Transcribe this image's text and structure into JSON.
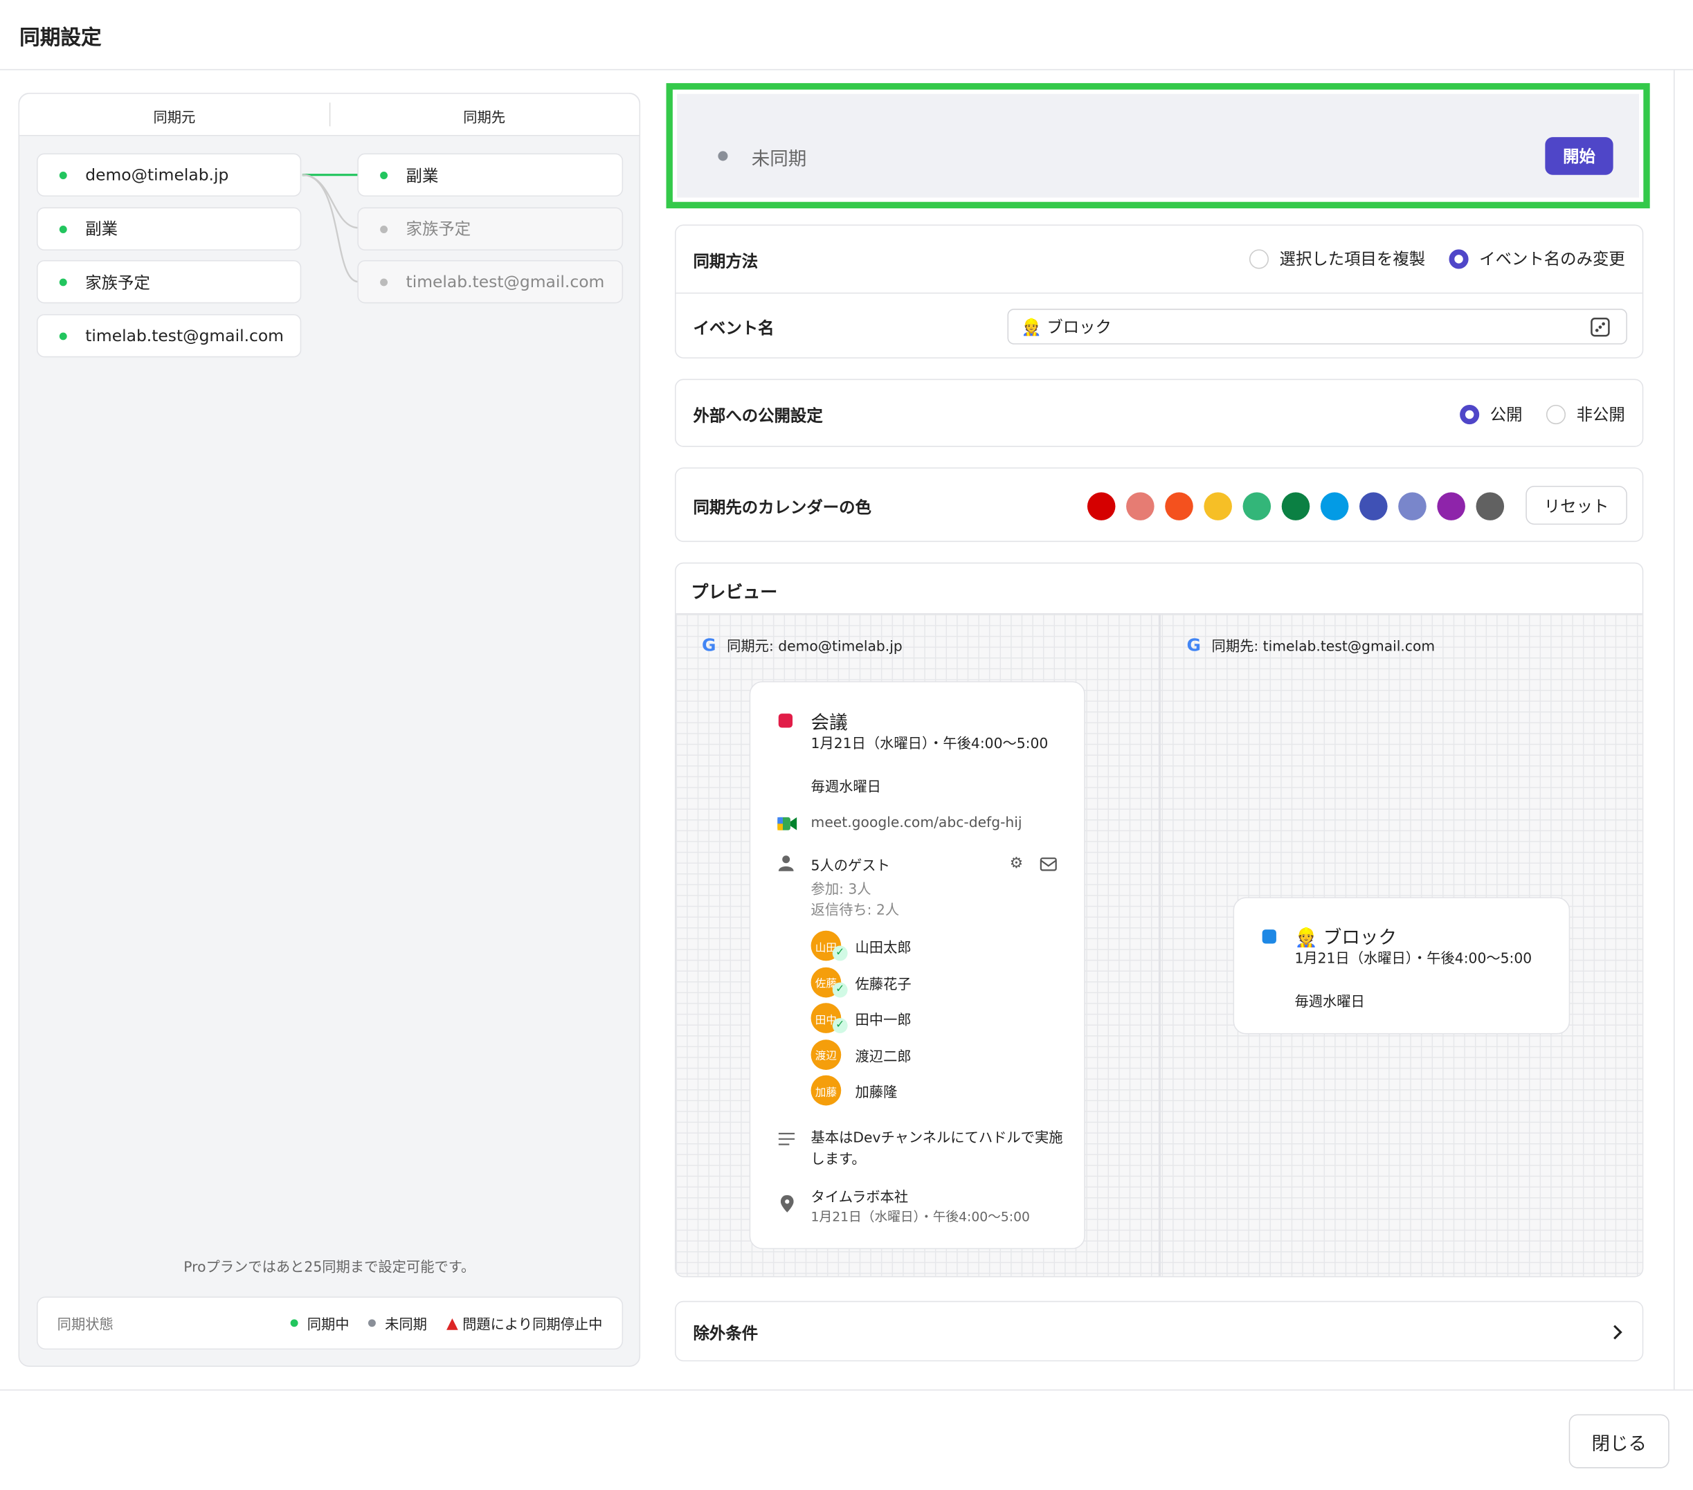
{
  "header": {
    "title": "同期設定"
  },
  "sync_panel": {
    "columns": [
      "同期元",
      "同期先"
    ],
    "sources": [
      "demo@timelab.jp",
      "副業",
      "家族予定",
      "timelab.test@gmail.com"
    ],
    "targets": [
      {
        "name": "副業",
        "synced": true
      },
      {
        "name": "家族予定",
        "synced": false
      },
      {
        "name": "timelab.test@gmail.com",
        "synced": false
      }
    ],
    "note": "Proプランではあと25同期まで設定可能です。",
    "legend": {
      "label": "同期状態",
      "items": [
        "同期中",
        "未同期",
        "問題により同期停止中"
      ]
    }
  },
  "status": {
    "text": "未同期",
    "button": "開始"
  },
  "sync_method": {
    "label": "同期方法",
    "options": [
      {
        "text": "選択した項目を複製",
        "selected": false
      },
      {
        "text": "イベント名のみ変更",
        "selected": true
      }
    ]
  },
  "event_name": {
    "label": "イベント名",
    "value": "👷 ブロック"
  },
  "visibility": {
    "label": "外部への公開設定",
    "options": [
      {
        "text": "公開",
        "selected": true
      },
      {
        "text": "非公開",
        "selected": false
      }
    ]
  },
  "calendar_color": {
    "label": "同期先のカレンダーの色",
    "colors": [
      "#d50000",
      "#e67c73",
      "#f4511e",
      "#f6bf26",
      "#33b679",
      "#0b8043",
      "#039be5",
      "#3f51b5",
      "#7986cb",
      "#8e24aa",
      "#616161"
    ],
    "reset": "リセット"
  },
  "preview": {
    "title": "プレビュー",
    "source_label": "同期元: demo@timelab.jp",
    "target_label": "同期先: timelab.test@gmail.com",
    "source_event": {
      "title": "会議",
      "time": "1月21日（水曜日）・午後4:00〜5:00",
      "recurrence": "毎週水曜日",
      "meet": "meet.google.com/abc-defg-hij",
      "guests": "5人のゲスト",
      "attending": "参加: 3人",
      "pending": "返信待ち: 2人",
      "guest_list": [
        {
          "initials": "山田",
          "name": "山田太郎",
          "accepted": true
        },
        {
          "initials": "佐藤",
          "name": "佐藤花子",
          "accepted": true
        },
        {
          "initials": "田中",
          "name": "田中一郎",
          "accepted": true
        },
        {
          "initials": "渡辺",
          "name": "渡辺二郎",
          "accepted": false
        },
        {
          "initials": "加藤",
          "name": "加藤隆",
          "accepted": false
        }
      ],
      "description": "基本はDevチャンネルにてハドルで実施します。",
      "location": "タイムラボ本社",
      "location_time": "1月21日（水曜日）・午後4:00〜5:00"
    },
    "target_event": {
      "title": "👷 ブロック",
      "time": "1月21日（水曜日）・午後4:00〜5:00",
      "recurrence": "毎週水曜日"
    }
  },
  "exclusion": {
    "label": "除外条件"
  },
  "footer": {
    "close": "閉じる"
  }
}
